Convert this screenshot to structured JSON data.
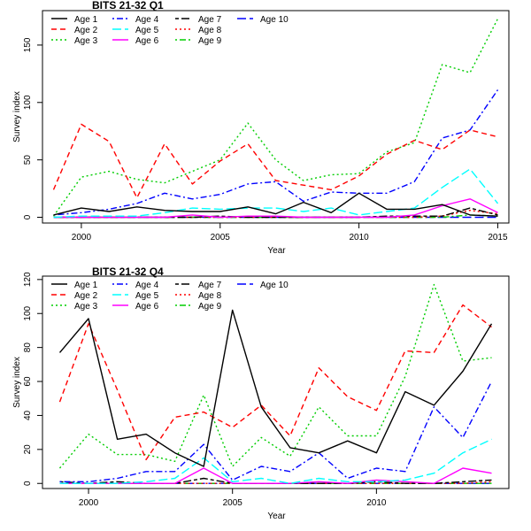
{
  "chart_data": [
    {
      "type": "line",
      "title": "BITS 21-32 Q1",
      "xlabel": "Year",
      "ylabel": "Survey index",
      "xlim": [
        1998.6,
        2015.4
      ],
      "ylim": [
        -5,
        180
      ],
      "xticks": [
        2000,
        2005,
        2010,
        2015
      ],
      "yticks": [
        0,
        50,
        100,
        150
      ],
      "legend_position": "top-left",
      "x": [
        1999,
        2000,
        2001,
        2002,
        2003,
        2004,
        2005,
        2006,
        2007,
        2008,
        2009,
        2010,
        2011,
        2012,
        2013,
        2014,
        2015
      ],
      "series": [
        {
          "name": "Age 1",
          "color": "#000000",
          "dash": "solid",
          "values": [
            2,
            8,
            5,
            9,
            6,
            5,
            5,
            9,
            3,
            13,
            4,
            21,
            7,
            7,
            11,
            2,
            1
          ]
        },
        {
          "name": "Age 2",
          "color": "#ff0000",
          "dash": "dashed",
          "values": [
            24,
            81,
            66,
            17,
            64,
            29,
            49,
            64,
            32,
            28,
            24,
            36,
            55,
            67,
            59,
            76,
            70
          ]
        },
        {
          "name": "Age 3",
          "color": "#00cd00",
          "dash": "dotted",
          "values": [
            1,
            35,
            40,
            33,
            30,
            40,
            50,
            82,
            50,
            32,
            37,
            38,
            57,
            65,
            133,
            126,
            173
          ]
        },
        {
          "name": "Age 4",
          "color": "#0000ff",
          "dash": "dotdash",
          "values": [
            2,
            4,
            7,
            12,
            21,
            16,
            20,
            29,
            31,
            14,
            22,
            21,
            21,
            31,
            69,
            76,
            111
          ]
        },
        {
          "name": "Age 5",
          "color": "#00ffff",
          "dash": "longdash",
          "values": [
            0,
            1,
            1,
            1,
            4,
            8,
            7,
            8,
            8,
            5,
            8,
            2,
            5,
            8,
            26,
            42,
            12
          ]
        },
        {
          "name": "Age 6",
          "color": "#ff00ff",
          "dash": "solid",
          "values": [
            0,
            0,
            0,
            0,
            0,
            2,
            0,
            1,
            1,
            0,
            0,
            0,
            0,
            2,
            10,
            16,
            4
          ]
        },
        {
          "name": "Age 7",
          "color": "#000000",
          "dash": "twodash",
          "values": [
            0,
            0,
            0,
            0,
            0,
            0,
            1,
            0,
            0,
            0,
            0,
            0,
            1,
            1,
            1,
            8,
            2
          ]
        },
        {
          "name": "Age 8",
          "color": "#ff0000",
          "dash": "dotted",
          "values": [
            0,
            0,
            0,
            0,
            0,
            0,
            0,
            0,
            0,
            0,
            0,
            0,
            0,
            0,
            1,
            6,
            3
          ]
        },
        {
          "name": "Age 9",
          "color": "#00cd00",
          "dash": "dotdash",
          "values": [
            0,
            0,
            0,
            0,
            0,
            0,
            0,
            0,
            0,
            0,
            0,
            0,
            0,
            0,
            0,
            2,
            1
          ]
        },
        {
          "name": "Age 10",
          "color": "#0000ff",
          "dash": "longdash",
          "values": [
            0,
            0,
            0,
            0,
            0,
            0,
            0,
            0,
            0,
            0,
            0,
            0,
            0,
            0,
            0,
            0,
            0
          ]
        }
      ]
    },
    {
      "type": "line",
      "title": "BITS 21-32 Q4",
      "xlabel": "Year",
      "ylabel": "Survey index",
      "xlim": [
        1998.4,
        2014.6
      ],
      "ylim": [
        -3,
        122
      ],
      "xticks": [
        2000,
        2005,
        2010
      ],
      "yticks": [
        0,
        20,
        40,
        60,
        80,
        100,
        120
      ],
      "legend_position": "top-left",
      "x": [
        1999,
        2000,
        2001,
        2002,
        2003,
        2004,
        2005,
        2006,
        2007,
        2008,
        2009,
        2010,
        2011,
        2012,
        2013,
        2014
      ],
      "series": [
        {
          "name": "Age 1",
          "color": "#000000",
          "dash": "solid",
          "values": [
            77,
            97,
            26,
            29,
            18,
            10,
            102,
            45,
            21,
            18,
            25,
            18,
            54,
            46,
            66,
            94
          ]
        },
        {
          "name": "Age 2",
          "color": "#ff0000",
          "dash": "dashed",
          "values": [
            48,
            94,
            55,
            14,
            39,
            42,
            33,
            46,
            28,
            68,
            51,
            43,
            78,
            77,
            105,
            92
          ]
        },
        {
          "name": "Age 3",
          "color": "#00cd00",
          "dash": "dotted",
          "values": [
            9,
            29,
            17,
            17,
            13,
            52,
            10,
            27,
            16,
            45,
            28,
            28,
            63,
            117,
            72,
            74
          ]
        },
        {
          "name": "Age 4",
          "color": "#0000ff",
          "dash": "dotdash",
          "values": [
            1,
            1,
            3,
            7,
            7,
            23,
            2,
            10,
            7,
            18,
            3,
            9,
            7,
            45,
            27,
            60
          ]
        },
        {
          "name": "Age 5",
          "color": "#00ffff",
          "dash": "longdash",
          "values": [
            0,
            0,
            0,
            1,
            3,
            15,
            1,
            3,
            0,
            3,
            1,
            1,
            2,
            6,
            18,
            26
          ]
        },
        {
          "name": "Age 6",
          "color": "#ff00ff",
          "dash": "solid",
          "values": [
            0,
            0,
            0,
            0,
            0,
            9,
            0,
            0,
            0,
            1,
            0,
            2,
            1,
            0,
            9,
            6
          ]
        },
        {
          "name": "Age 7",
          "color": "#000000",
          "dash": "twodash",
          "values": [
            1,
            0,
            1,
            0,
            0,
            3,
            0,
            0,
            0,
            0,
            0,
            1,
            0,
            0,
            1,
            2
          ]
        },
        {
          "name": "Age 8",
          "color": "#ff0000",
          "dash": "dotted",
          "values": [
            0,
            0,
            0,
            0,
            0,
            0,
            0,
            0,
            0,
            0,
            0,
            0,
            0,
            0,
            0,
            1
          ]
        },
        {
          "name": "Age 9",
          "color": "#00cd00",
          "dash": "dotdash",
          "values": [
            0,
            0,
            0,
            0,
            0,
            0,
            0,
            0,
            0,
            0,
            0,
            0,
            0,
            0,
            0,
            0
          ]
        },
        {
          "name": "Age 10",
          "color": "#0000ff",
          "dash": "longdash",
          "values": [
            0,
            0,
            0,
            0,
            0,
            0,
            0,
            0,
            0,
            0,
            0,
            0,
            0,
            0,
            0,
            0
          ]
        }
      ]
    }
  ]
}
